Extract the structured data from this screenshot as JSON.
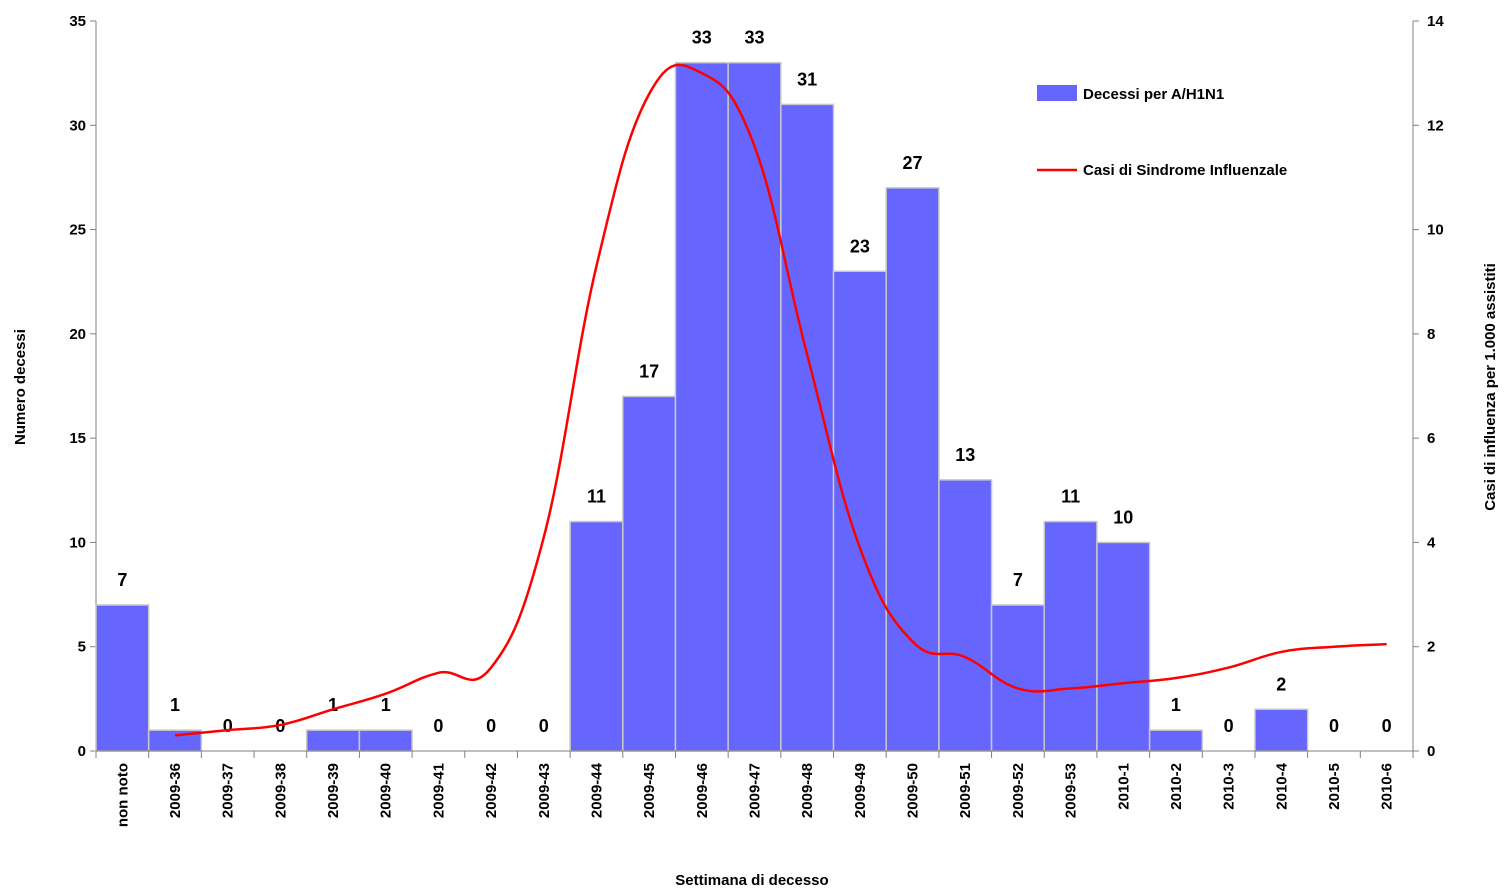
{
  "chart_data": {
    "type": "bar",
    "xlabel": "Settimana di decesso",
    "ylabel": "Numero decessi",
    "y2label": "Casi di influenza per 1.000 assistiti",
    "ylim": [
      0,
      35
    ],
    "y2lim": [
      0,
      14
    ],
    "yticks": [
      0,
      5,
      10,
      15,
      20,
      25,
      30,
      35
    ],
    "y2ticks": [
      0,
      2,
      4,
      6,
      8,
      10,
      12,
      14
    ],
    "legend_position": "top-right",
    "categories": [
      "non noto",
      "2009-36",
      "2009-37",
      "2009-38",
      "2009-39",
      "2009-40",
      "2009-41",
      "2009-42",
      "2009-43",
      "2009-44",
      "2009-45",
      "2009-46",
      "2009-47",
      "2009-48",
      "2009-49",
      "2009-50",
      "2009-51",
      "2009-52",
      "2009-53",
      "2010-1",
      "2010-2",
      "2010-3",
      "2010-4",
      "2010-5",
      "2010-6"
    ],
    "series": [
      {
        "name": "Decessi per A/H1N1",
        "type": "bar",
        "axis": "left",
        "color": "#6666ff",
        "values": [
          7,
          1,
          0,
          0,
          1,
          1,
          0,
          0,
          0,
          11,
          17,
          33,
          33,
          31,
          23,
          27,
          13,
          7,
          11,
          10,
          1,
          0,
          2,
          0,
          0
        ]
      },
      {
        "name": "Casi di Sindrome Influenzale",
        "type": "line",
        "axis": "right",
        "color": "#ff0000",
        "values": [
          null,
          0.3,
          0.4,
          0.5,
          0.8,
          1.1,
          1.5,
          1.6,
          4.1,
          9.3,
          12.6,
          13.0,
          11.6,
          7.6,
          3.9,
          2.1,
          1.8,
          1.2,
          1.2,
          1.3,
          1.4,
          1.6,
          1.9,
          2.0,
          2.05
        ]
      }
    ]
  }
}
